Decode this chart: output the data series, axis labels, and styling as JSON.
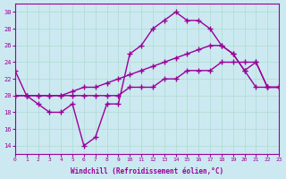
{
  "xlabel": "Windchill (Refroidissement éolien,°C)",
  "background_color": "#cce8f0",
  "line_color": "#990099",
  "xlim": [
    0,
    23
  ],
  "ylim": [
    13,
    31
  ],
  "yticks": [
    14,
    16,
    18,
    20,
    22,
    24,
    26,
    28,
    30
  ],
  "xticks": [
    0,
    1,
    2,
    3,
    4,
    5,
    6,
    7,
    8,
    9,
    10,
    11,
    12,
    13,
    14,
    15,
    16,
    17,
    18,
    19,
    20,
    21,
    22,
    23
  ],
  "line1_x": [
    0,
    1,
    2,
    3,
    4,
    5,
    6,
    7,
    8,
    9,
    10,
    11,
    12,
    13,
    14,
    15,
    16,
    17,
    18,
    19,
    20,
    21,
    22,
    23
  ],
  "line1_y": [
    23,
    20,
    19,
    18,
    18,
    19,
    14,
    15,
    19,
    19,
    25,
    26,
    28,
    29,
    30,
    29,
    29,
    28,
    26,
    25,
    23,
    24,
    21,
    21
  ],
  "line2_x": [
    0,
    1,
    2,
    3,
    4,
    5,
    6,
    7,
    8,
    9,
    10,
    11,
    12,
    13,
    14,
    15,
    16,
    17,
    18,
    19,
    20,
    21,
    22,
    23
  ],
  "line2_y": [
    20,
    20,
    20,
    20,
    20,
    20,
    20,
    20,
    20,
    20,
    21,
    21,
    21,
    22,
    22,
    23,
    23,
    23,
    24,
    24,
    24,
    24,
    21,
    21
  ],
  "line3_x": [
    0,
    1,
    2,
    3,
    4,
    5,
    6,
    7,
    8,
    9,
    10,
    11,
    12,
    13,
    14,
    15,
    16,
    17,
    18,
    19,
    20,
    21,
    22,
    23
  ],
  "line3_y": [
    20,
    20,
    20,
    20,
    20,
    20.5,
    21,
    21,
    21.5,
    22,
    22.5,
    23,
    23.5,
    24,
    24.5,
    25,
    25.5,
    26,
    26,
    25,
    23,
    21,
    21,
    21
  ]
}
